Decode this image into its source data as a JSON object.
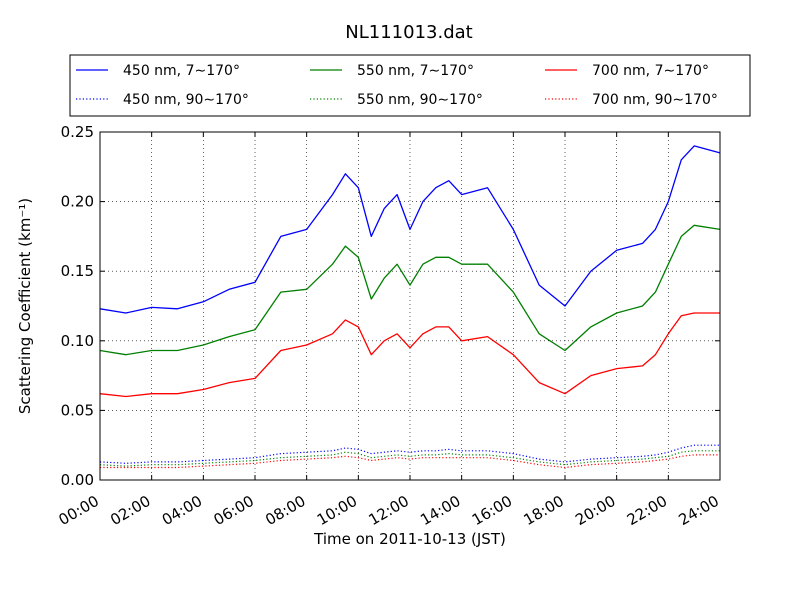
{
  "chart_data": {
    "type": "line",
    "title": "NL111013.dat",
    "xlabel": "Time on 2011-10-13 (JST)",
    "ylabel": "Scattering Coefficient (km⁻¹)",
    "xlim": [
      0,
      24
    ],
    "ylim": [
      0,
      0.25
    ],
    "grid": true,
    "legend_position": "top",
    "x_tick_labels": [
      "00:00",
      "02:00",
      "04:00",
      "06:00",
      "08:00",
      "10:00",
      "12:00",
      "14:00",
      "16:00",
      "18:00",
      "20:00",
      "22:00",
      "24:00"
    ],
    "y_tick_labels": [
      "0.00",
      "0.05",
      "0.10",
      "0.15",
      "0.20",
      "0.25"
    ],
    "x": [
      0,
      1,
      2,
      3,
      4,
      5,
      6,
      7,
      8,
      9,
      9.5,
      10,
      10.5,
      11,
      11.5,
      12,
      12.5,
      13,
      13.5,
      14,
      15,
      16,
      17,
      18,
      19,
      20,
      21,
      21.5,
      22,
      22.5,
      23,
      24
    ],
    "series": [
      {
        "name": "450 nm, 7∼170°",
        "color": "#0000ff",
        "style": "solid",
        "values": [
          0.123,
          0.12,
          0.124,
          0.123,
          0.128,
          0.137,
          0.142,
          0.175,
          0.18,
          0.205,
          0.22,
          0.21,
          0.175,
          0.195,
          0.205,
          0.18,
          0.2,
          0.21,
          0.215,
          0.205,
          0.21,
          0.18,
          0.14,
          0.125,
          0.15,
          0.165,
          0.17,
          0.18,
          0.2,
          0.23,
          0.24,
          0.235
        ]
      },
      {
        "name": "550 nm, 7∼170°",
        "color": "#008000",
        "style": "solid",
        "values": [
          0.093,
          0.09,
          0.093,
          0.093,
          0.097,
          0.103,
          0.108,
          0.135,
          0.137,
          0.155,
          0.168,
          0.16,
          0.13,
          0.145,
          0.155,
          0.14,
          0.155,
          0.16,
          0.16,
          0.155,
          0.155,
          0.135,
          0.105,
          0.093,
          0.11,
          0.12,
          0.125,
          0.135,
          0.155,
          0.175,
          0.183,
          0.18
        ]
      },
      {
        "name": "700 nm, 7∼170°",
        "color": "#ff0000",
        "style": "solid",
        "values": [
          0.062,
          0.06,
          0.062,
          0.062,
          0.065,
          0.07,
          0.073,
          0.093,
          0.097,
          0.105,
          0.115,
          0.11,
          0.09,
          0.1,
          0.105,
          0.095,
          0.105,
          0.11,
          0.11,
          0.1,
          0.103,
          0.09,
          0.07,
          0.062,
          0.075,
          0.08,
          0.082,
          0.09,
          0.105,
          0.118,
          0.12,
          0.12
        ]
      },
      {
        "name": "450 nm, 90∼170°",
        "color": "#0000ff",
        "style": "dotted",
        "values": [
          0.013,
          0.012,
          0.013,
          0.013,
          0.014,
          0.015,
          0.016,
          0.019,
          0.02,
          0.021,
          0.023,
          0.022,
          0.019,
          0.02,
          0.021,
          0.02,
          0.021,
          0.021,
          0.022,
          0.021,
          0.021,
          0.019,
          0.015,
          0.013,
          0.015,
          0.016,
          0.017,
          0.018,
          0.02,
          0.023,
          0.025,
          0.025
        ]
      },
      {
        "name": "550 nm, 90∼170°",
        "color": "#008000",
        "style": "dotted",
        "values": [
          0.011,
          0.01,
          0.011,
          0.011,
          0.012,
          0.013,
          0.014,
          0.016,
          0.017,
          0.018,
          0.02,
          0.019,
          0.016,
          0.017,
          0.018,
          0.017,
          0.018,
          0.018,
          0.019,
          0.018,
          0.018,
          0.016,
          0.013,
          0.011,
          0.013,
          0.014,
          0.015,
          0.016,
          0.017,
          0.02,
          0.021,
          0.021
        ]
      },
      {
        "name": "700 nm, 90∼170°",
        "color": "#ff0000",
        "style": "dotted",
        "values": [
          0.009,
          0.009,
          0.009,
          0.009,
          0.01,
          0.011,
          0.012,
          0.014,
          0.015,
          0.016,
          0.017,
          0.016,
          0.014,
          0.015,
          0.016,
          0.015,
          0.016,
          0.016,
          0.016,
          0.016,
          0.016,
          0.014,
          0.011,
          0.009,
          0.011,
          0.012,
          0.013,
          0.014,
          0.015,
          0.017,
          0.018,
          0.018
        ]
      }
    ]
  }
}
